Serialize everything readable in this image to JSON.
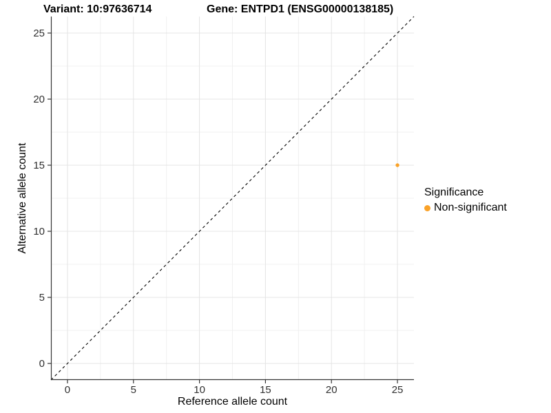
{
  "chart_data": {
    "type": "scatter",
    "title_variant": "Variant: 10:97636714",
    "title_gene": "Gene: ENTPD1 (ENSG00000138185)",
    "xlabel": "Reference allele count",
    "ylabel": "Alternative allele count",
    "xlim": [
      -1.25,
      26.25
    ],
    "ylim": [
      -1.25,
      26.25
    ],
    "x_ticks": [
      0,
      5,
      10,
      15,
      20,
      25
    ],
    "y_ticks": [
      0,
      5,
      10,
      15,
      20,
      25
    ],
    "x_minor_ticks": [
      2.5,
      7.5,
      12.5,
      17.5,
      22.5
    ],
    "y_minor_ticks": [
      2.5,
      7.5,
      12.5,
      17.5,
      22.5
    ],
    "grid": true,
    "reference_line": {
      "type": "identity",
      "style": "dashed",
      "color": "#000000"
    },
    "series": [
      {
        "name": "Non-significant",
        "color": "#FAA228",
        "points": [
          {
            "x": 25,
            "y": 15
          }
        ]
      }
    ],
    "legend": {
      "title": "Significance",
      "position": "right",
      "entries": [
        {
          "label": "Non-significant",
          "color": "#FAA228"
        }
      ]
    }
  },
  "colors": {
    "background": "#FFFFFF",
    "grid_major": "#E4E4E4",
    "grid_minor": "#F0F0F0",
    "axis_line": "#333333",
    "tick_label": "#303030",
    "dashed_line": "#000000",
    "point": "#FAA228"
  }
}
